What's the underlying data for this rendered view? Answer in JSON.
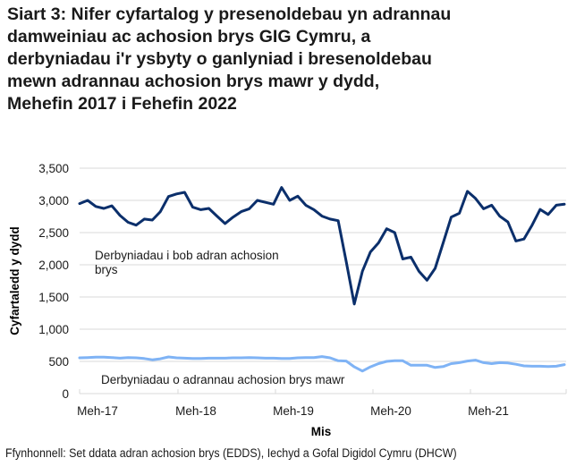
{
  "title_lines": [
    "Siart 3: Nifer cyfartalog y presenoldebau yn adrannau",
    "damweiniau ac achosion brys GIG Cymru, a",
    "derbyniadau i'r ysbyty o ganlyniad i bresenoldebau",
    "mewn adrannau achosion brys mawr y dydd,",
    "Mehefin 2017 i Fehefin 2022"
  ],
  "source": "Ffynhonnell: Set ddata adran achosion brys (EDDS), Iechyd a Gofal Digidol Cymru (DHCW)",
  "colors": {
    "series_attendances": "#0b2f6b",
    "series_admissions": "#7fb3f5",
    "gridline": "#d9d9d9",
    "text": "#1a1a1a"
  },
  "chart_data": {
    "type": "line",
    "title": "Siart 3: Nifer cyfartalog y presenoldebau yn adrannau damweiniau ac achosion brys GIG Cymru, a derbyniadau i'r ysbyty o ganlyniad i bresenoldebau mewn adrannau achosion brys mawr y dydd, Mehefin 2017 i Fehefin 2022",
    "xlabel": "Mis",
    "ylabel": "Cyfartaledd y dydd",
    "ylim": [
      0,
      3500
    ],
    "yticks": [
      0,
      500,
      1000,
      1500,
      2000,
      2500,
      3000,
      3500
    ],
    "ytick_labels": [
      "0",
      "500",
      "1,000",
      "1,500",
      "2,000",
      "2,500",
      "3,000",
      "3,500"
    ],
    "xtick_labels": [
      "Meh-17",
      "Meh-18",
      "Meh-19",
      "Meh-20",
      "Meh-21"
    ],
    "xtick_indices": [
      0,
      12,
      24,
      36,
      48
    ],
    "grid": true,
    "legend_position": "inline labels",
    "x": [
      "Meh-17",
      "Gor-17",
      "Aws-17",
      "Med-17",
      "Hyd-17",
      "Tach-17",
      "Rhag-17",
      "Ion-18",
      "Chwe-18",
      "Maw-18",
      "Ebr-18",
      "Mai-18",
      "Meh-18",
      "Gor-18",
      "Aws-18",
      "Med-18",
      "Hyd-18",
      "Tach-18",
      "Rhag-18",
      "Ion-19",
      "Chwe-19",
      "Maw-19",
      "Ebr-19",
      "Mai-19",
      "Meh-19",
      "Gor-19",
      "Aws-19",
      "Med-19",
      "Hyd-19",
      "Tach-19",
      "Rhag-19",
      "Ion-20",
      "Chwe-20",
      "Maw-20",
      "Ebr-20",
      "Mai-20",
      "Meh-20",
      "Gor-20",
      "Aws-20",
      "Med-20",
      "Hyd-20",
      "Tach-20",
      "Rhag-20",
      "Ion-21",
      "Chwe-21",
      "Maw-21",
      "Ebr-21",
      "Mai-21",
      "Meh-21",
      "Gor-21",
      "Aws-21",
      "Med-21",
      "Hyd-21",
      "Tach-21",
      "Rhag-21",
      "Ion-22",
      "Chwe-22",
      "Maw-22",
      "Ebr-22",
      "Mai-22",
      "Meh-22"
    ],
    "series": [
      {
        "name": "Derbyniadau i bob adran achosion brys",
        "label_lines": [
          "Derbyniadau i bob adran achosion",
          "brys"
        ],
        "values": [
          2950,
          3000,
          2905,
          2875,
          2915,
          2765,
          2660,
          2615,
          2710,
          2695,
          2825,
          3060,
          3100,
          3125,
          2895,
          2855,
          2875,
          2755,
          2640,
          2740,
          2825,
          2870,
          3000,
          2970,
          2940,
          3200,
          3000,
          3065,
          2925,
          2855,
          2755,
          2710,
          2685,
          2050,
          1390,
          1900,
          2200,
          2340,
          2560,
          2500,
          2090,
          2120,
          1900,
          1760,
          1945,
          2340,
          2740,
          2800,
          3140,
          3030,
          2870,
          2925,
          2755,
          2665,
          2370,
          2400,
          2615,
          2860,
          2780,
          2925,
          2940
        ]
      },
      {
        "name": "Derbyniadau o adrannau achosion brys mawr",
        "label_lines": [
          "Derbyniadau o adrannau achosion brys mawr"
        ],
        "values": [
          555,
          560,
          565,
          565,
          560,
          550,
          560,
          555,
          545,
          525,
          540,
          570,
          555,
          550,
          545,
          545,
          550,
          550,
          550,
          555,
          555,
          560,
          555,
          550,
          550,
          545,
          545,
          555,
          560,
          560,
          575,
          555,
          510,
          505,
          415,
          350,
          415,
          465,
          500,
          510,
          510,
          440,
          440,
          440,
          405,
          420,
          465,
          480,
          505,
          520,
          480,
          465,
          480,
          475,
          455,
          430,
          425,
          425,
          420,
          425,
          450
        ]
      }
    ]
  }
}
